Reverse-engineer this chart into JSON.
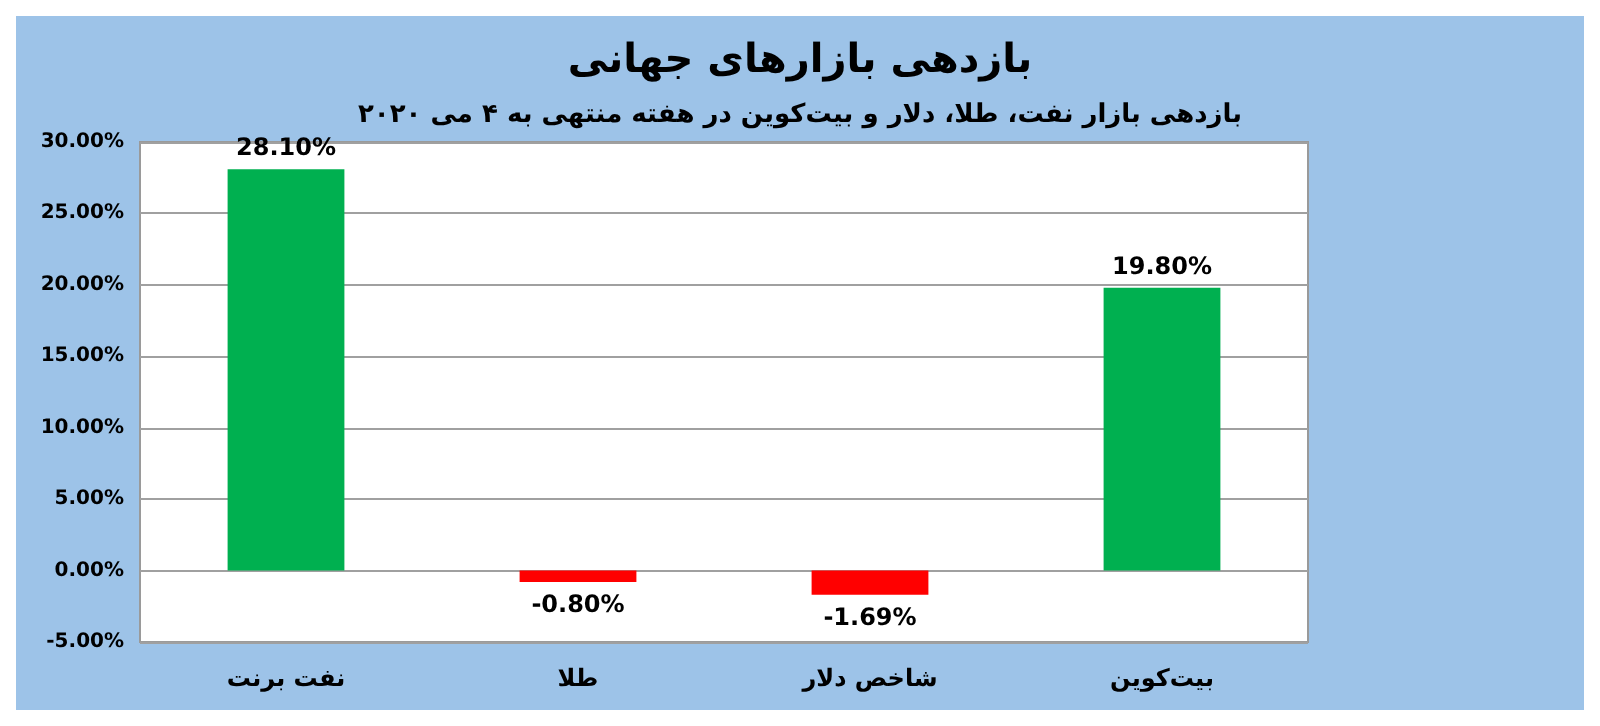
{
  "chart_data": {
    "type": "bar",
    "title": "بازدهی بازارهای جهانی",
    "subtitle": "بازدهی بازار نفت، طلا، دلار و بیت‌کوین در هفته منتهی به ۴ می ۲۰۲۰",
    "categories": [
      "نفت برنت",
      "طلا",
      "شاخص دلار",
      "بیت‌کوین"
    ],
    "values": [
      28.1,
      -0.8,
      -1.69,
      19.8
    ],
    "colors": [
      "#00b050",
      "#ff0000",
      "#ff0000",
      "#00b050"
    ],
    "value_labels": [
      "28.10%",
      "-0.80%",
      "-1.69%",
      "19.80%"
    ],
    "ylim": [
      -5,
      30
    ],
    "yticks": [
      {
        "value": -5,
        "label": "-5.00%"
      },
      {
        "value": 0,
        "label": "0.00%"
      },
      {
        "value": 5,
        "label": "5.00%"
      },
      {
        "value": 10,
        "label": "10.00%"
      },
      {
        "value": 15,
        "label": "15.00%"
      },
      {
        "value": 20,
        "label": "20.00%"
      },
      {
        "value": 25,
        "label": "25.00%"
      },
      {
        "value": 30,
        "label": "30.00%"
      }
    ],
    "grid": "y"
  }
}
